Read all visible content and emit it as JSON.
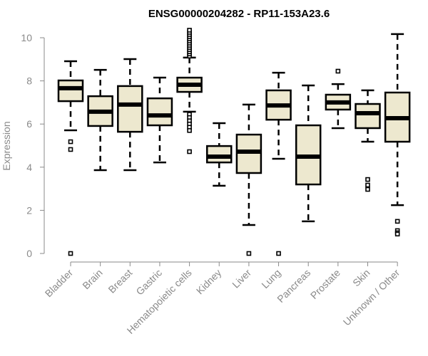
{
  "chart_data": {
    "type": "box",
    "title": "ENSG00000204282 - RP11-153A23.6",
    "xlabel": "",
    "ylabel": "Expression",
    "ylim": [
      0,
      10
    ],
    "yticks": [
      "0",
      "2",
      "4",
      "6",
      "8",
      "10"
    ],
    "box_color": "#EDE8CF",
    "categories": [
      "Bladder",
      "Brain",
      "Breast",
      "Gastric",
      "Hematopoietic cells",
      "Kidney",
      "Liver",
      "Lung",
      "Pancreas",
      "Prostate",
      "Skin",
      "Unknown / Other"
    ],
    "series": [
      {
        "name": "Bladder",
        "whisker_low": 5.71,
        "q1": 7.06,
        "median": 7.66,
        "q3": 8.02,
        "whisker_high": 8.91,
        "outliers": [
          5.18,
          4.82,
          0
        ]
      },
      {
        "name": "Brain",
        "whisker_low": 3.86,
        "q1": 5.91,
        "median": 6.57,
        "q3": 7.29,
        "whisker_high": 8.51,
        "outliers": []
      },
      {
        "name": "Breast",
        "whisker_low": 3.86,
        "q1": 5.64,
        "median": 6.9,
        "q3": 7.76,
        "whisker_high": 9.01,
        "outliers": []
      },
      {
        "name": "Gastric",
        "whisker_low": 4.22,
        "q1": 5.94,
        "median": 6.4,
        "q3": 7.19,
        "whisker_high": 8.15,
        "outliers": []
      },
      {
        "name": "Hematopoietic cells",
        "whisker_low": 6.57,
        "q1": 7.49,
        "median": 7.82,
        "q3": 8.15,
        "whisker_high": 9.08,
        "outliers": [
          9.15,
          9.25,
          9.35,
          9.45,
          9.55,
          9.65,
          9.75,
          9.85,
          9.95,
          10.05,
          10.15,
          10.25,
          10.35,
          6.45,
          6.3,
          6.15,
          6.0,
          5.85,
          5.7,
          4.72
        ]
      },
      {
        "name": "Kidney",
        "whisker_low": 3.14,
        "q1": 4.22,
        "median": 4.49,
        "q3": 4.98,
        "whisker_high": 6.04,
        "outliers": []
      },
      {
        "name": "Liver",
        "whisker_low": 1.32,
        "q1": 3.73,
        "median": 4.72,
        "q3": 5.51,
        "whisker_high": 6.9,
        "outliers": [
          0
        ]
      },
      {
        "name": "Lung",
        "whisker_low": 4.39,
        "q1": 6.2,
        "median": 6.86,
        "q3": 7.56,
        "whisker_high": 8.38,
        "outliers": [
          0
        ]
      },
      {
        "name": "Pancreas",
        "whisker_low": 1.49,
        "q1": 3.2,
        "median": 4.49,
        "q3": 5.94,
        "whisker_high": 7.79,
        "outliers": []
      },
      {
        "name": "Prostate",
        "whisker_low": 5.81,
        "q1": 6.67,
        "median": 7.0,
        "q3": 7.36,
        "whisker_high": 7.85,
        "outliers": [
          8.45
        ]
      },
      {
        "name": "Skin",
        "whisker_low": 5.18,
        "q1": 5.81,
        "median": 6.5,
        "q3": 6.93,
        "whisker_high": 7.56,
        "outliers": [
          3.43,
          3.17,
          2.97
        ]
      },
      {
        "name": "Unknown / Other",
        "whisker_low": 2.24,
        "q1": 5.18,
        "median": 6.27,
        "q3": 7.46,
        "whisker_high": 10.17,
        "outliers": [
          1.49,
          1.06,
          0.96,
          0.9
        ]
      }
    ],
    "grid": false,
    "legend": "none"
  }
}
